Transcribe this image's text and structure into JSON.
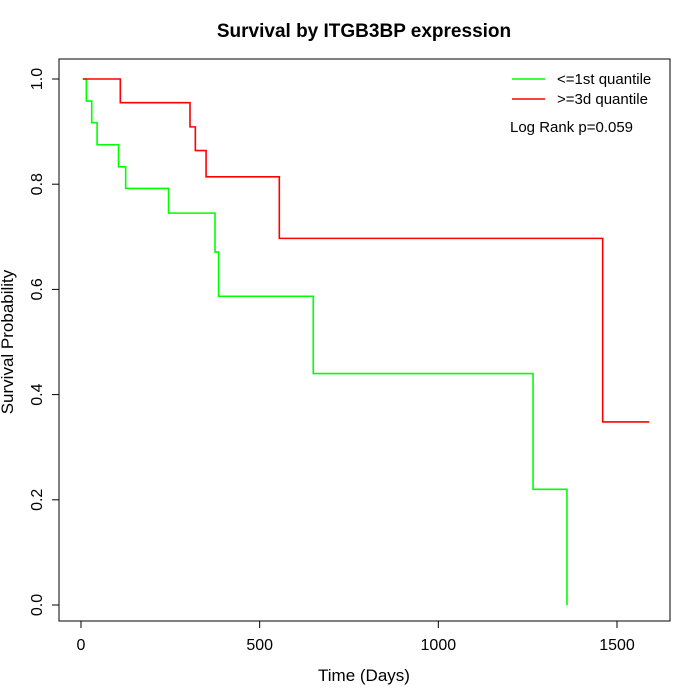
{
  "chart_data": {
    "type": "line",
    "step": true,
    "title": "Survival by ITGB3BP expression",
    "xlabel": "Time (Days)",
    "ylabel": "Survival Probability",
    "xlim": [
      0,
      1650
    ],
    "ylim": [
      0,
      1.0
    ],
    "xticks": [
      0,
      500,
      1000,
      1500
    ],
    "yticks": [
      0.0,
      0.2,
      0.4,
      0.6,
      0.8,
      1.0
    ],
    "xtick_labels": [
      "0",
      "500",
      "1000",
      "1500"
    ],
    "ytick_labels": [
      "0.0",
      "0.2",
      "0.4",
      "0.6",
      "0.8",
      "1.0"
    ],
    "legend_position": "top-right",
    "annotation": "Log Rank p=0.059",
    "series": [
      {
        "name": "<=1st quantile",
        "color": "#00ff00",
        "x": [
          5,
          15,
          30,
          45,
          105,
          125,
          245,
          375,
          385,
          650,
          1265,
          1360
        ],
        "y": [
          1.0,
          0.958,
          0.917,
          0.875,
          0.833,
          0.792,
          0.745,
          0.671,
          0.587,
          0.44,
          0.22,
          0.0
        ]
      },
      {
        "name": ">=3d quantile",
        "color": "#ff0000",
        "x": [
          5,
          110,
          305,
          320,
          350,
          555,
          1460,
          1590
        ],
        "y": [
          1.0,
          0.955,
          0.909,
          0.864,
          0.814,
          0.697,
          0.348,
          0.348
        ]
      }
    ]
  }
}
